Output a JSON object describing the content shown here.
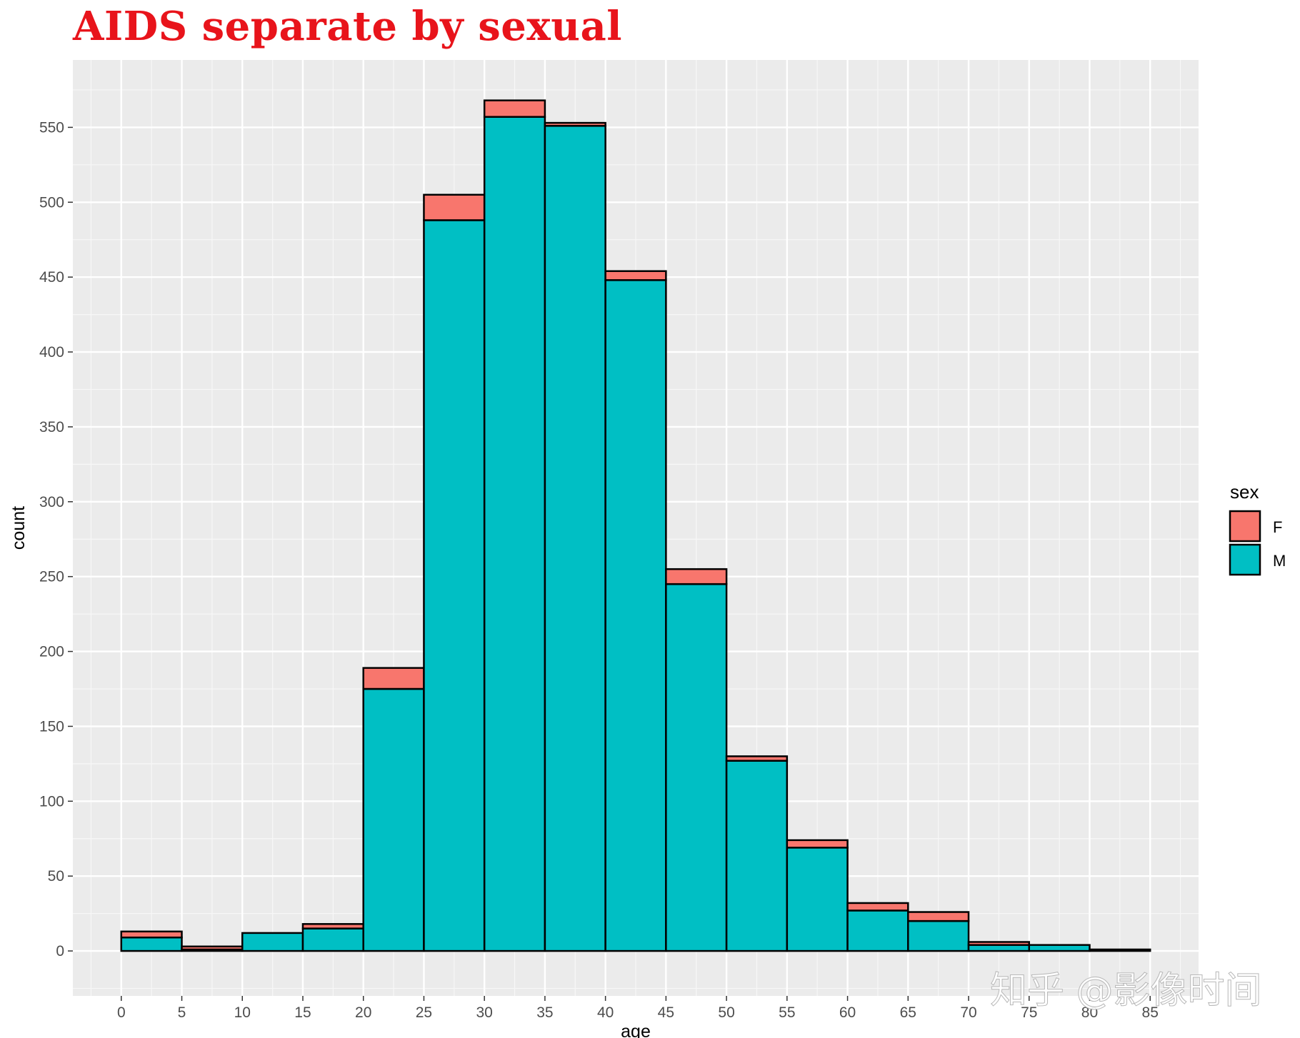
{
  "chart_data": {
    "type": "bar",
    "title": "AIDS separate by sexual",
    "xlabel": "age",
    "ylabel": "count",
    "stacked": true,
    "bin_width": 5,
    "x_ticks": [
      0,
      5,
      10,
      15,
      20,
      25,
      30,
      35,
      40,
      45,
      50,
      55,
      60,
      65,
      70,
      75,
      80,
      85
    ],
    "y_ticks": [
      0,
      50,
      100,
      150,
      200,
      250,
      300,
      350,
      400,
      450,
      500,
      550
    ],
    "xlim": [
      -4,
      89
    ],
    "ylim": [
      -30,
      595
    ],
    "bins": [
      {
        "start": 0,
        "end": 5
      },
      {
        "start": 5,
        "end": 10
      },
      {
        "start": 10,
        "end": 15
      },
      {
        "start": 15,
        "end": 20
      },
      {
        "start": 20,
        "end": 25
      },
      {
        "start": 25,
        "end": 30
      },
      {
        "start": 30,
        "end": 35
      },
      {
        "start": 35,
        "end": 40
      },
      {
        "start": 40,
        "end": 45
      },
      {
        "start": 45,
        "end": 50
      },
      {
        "start": 50,
        "end": 55
      },
      {
        "start": 55,
        "end": 60
      },
      {
        "start": 60,
        "end": 65
      },
      {
        "start": 65,
        "end": 70
      },
      {
        "start": 70,
        "end": 75
      },
      {
        "start": 75,
        "end": 80
      },
      {
        "start": 80,
        "end": 85
      }
    ],
    "series": [
      {
        "name": "M",
        "color": "#00bfc4",
        "values": [
          9,
          1,
          12,
          15,
          175,
          488,
          557,
          551,
          448,
          245,
          127,
          69,
          27,
          20,
          4,
          4,
          1
        ]
      },
      {
        "name": "F",
        "color": "#f8766d",
        "values": [
          4,
          2,
          0,
          3,
          14,
          17,
          11,
          2,
          6,
          10,
          3,
          5,
          5,
          6,
          2,
          0,
          0
        ]
      }
    ],
    "legend": {
      "title": "sex",
      "position": "right",
      "entries": [
        "F",
        "M"
      ]
    },
    "grid": true
  },
  "watermark": "知乎 @影像时间"
}
